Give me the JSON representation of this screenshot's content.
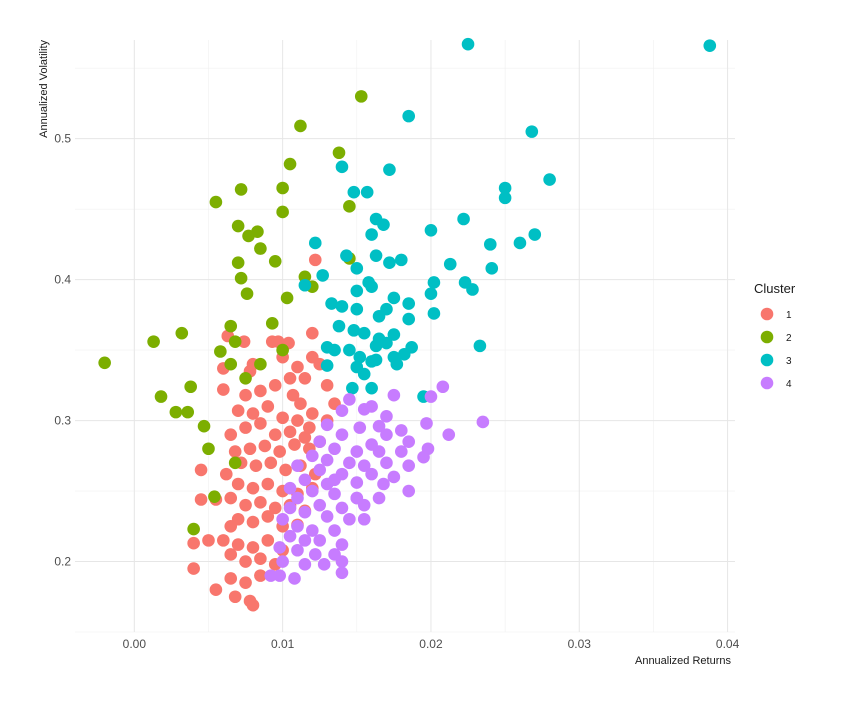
{
  "chart_data": {
    "type": "scatter",
    "xlabel": "Annualized Returns",
    "ylabel": "Annualized Volatility",
    "x_ticks": [
      "0.00",
      "0.01",
      "0.02",
      "0.03",
      "0.04"
    ],
    "y_ticks": [
      "0.2",
      "0.3",
      "0.4",
      "0.5"
    ],
    "xlim": [
      -0.004,
      0.0405
    ],
    "ylim": [
      0.15,
      0.57
    ],
    "grid": true,
    "legend": {
      "title": "Cluster",
      "position": "right"
    },
    "series": [
      {
        "name": "1",
        "color": "#F8766D",
        "points": [
          [
            0.0122,
            0.414
          ],
          [
            0.0093,
            0.356
          ],
          [
            0.0063,
            0.36
          ],
          [
            0.0074,
            0.356
          ],
          [
            0.0097,
            0.356
          ],
          [
            0.0104,
            0.355
          ],
          [
            0.012,
            0.362
          ],
          [
            0.01,
            0.345
          ],
          [
            0.006,
            0.337
          ],
          [
            0.008,
            0.34
          ],
          [
            0.0078,
            0.335
          ],
          [
            0.012,
            0.345
          ],
          [
            0.011,
            0.338
          ],
          [
            0.0105,
            0.33
          ],
          [
            0.0095,
            0.325
          ],
          [
            0.0085,
            0.321
          ],
          [
            0.0075,
            0.318
          ],
          [
            0.0115,
            0.33
          ],
          [
            0.0125,
            0.34
          ],
          [
            0.013,
            0.325
          ],
          [
            0.006,
            0.322
          ],
          [
            0.007,
            0.307
          ],
          [
            0.008,
            0.305
          ],
          [
            0.009,
            0.31
          ],
          [
            0.01,
            0.302
          ],
          [
            0.011,
            0.3
          ],
          [
            0.012,
            0.305
          ],
          [
            0.013,
            0.3
          ],
          [
            0.0065,
            0.29
          ],
          [
            0.0075,
            0.295
          ],
          [
            0.0085,
            0.298
          ],
          [
            0.0095,
            0.29
          ],
          [
            0.0105,
            0.292
          ],
          [
            0.0115,
            0.288
          ],
          [
            0.0125,
            0.285
          ],
          [
            0.0068,
            0.278
          ],
          [
            0.0078,
            0.28
          ],
          [
            0.0088,
            0.282
          ],
          [
            0.0098,
            0.278
          ],
          [
            0.0108,
            0.283
          ],
          [
            0.0118,
            0.28
          ],
          [
            0.0072,
            0.27
          ],
          [
            0.0082,
            0.268
          ],
          [
            0.0092,
            0.27
          ],
          [
            0.0102,
            0.265
          ],
          [
            0.0112,
            0.268
          ],
          [
            0.0122,
            0.262
          ],
          [
            0.0062,
            0.262
          ],
          [
            0.007,
            0.255
          ],
          [
            0.008,
            0.252
          ],
          [
            0.009,
            0.255
          ],
          [
            0.01,
            0.25
          ],
          [
            0.011,
            0.248
          ],
          [
            0.012,
            0.252
          ],
          [
            0.0065,
            0.245
          ],
          [
            0.0075,
            0.24
          ],
          [
            0.0085,
            0.242
          ],
          [
            0.0095,
            0.238
          ],
          [
            0.0105,
            0.24
          ],
          [
            0.0115,
            0.236
          ],
          [
            0.0045,
            0.244
          ],
          [
            0.0055,
            0.244
          ],
          [
            0.0045,
            0.265
          ],
          [
            0.007,
            0.23
          ],
          [
            0.008,
            0.228
          ],
          [
            0.009,
            0.232
          ],
          [
            0.01,
            0.225
          ],
          [
            0.0065,
            0.225
          ],
          [
            0.011,
            0.226
          ],
          [
            0.006,
            0.215
          ],
          [
            0.007,
            0.212
          ],
          [
            0.008,
            0.21
          ],
          [
            0.009,
            0.215
          ],
          [
            0.01,
            0.208
          ],
          [
            0.005,
            0.215
          ],
          [
            0.004,
            0.213
          ],
          [
            0.0065,
            0.205
          ],
          [
            0.0075,
            0.2
          ],
          [
            0.0085,
            0.202
          ],
          [
            0.0095,
            0.198
          ],
          [
            0.004,
            0.195
          ],
          [
            0.0065,
            0.188
          ],
          [
            0.0075,
            0.185
          ],
          [
            0.0085,
            0.19
          ],
          [
            0.0055,
            0.18
          ],
          [
            0.0068,
            0.175
          ],
          [
            0.0078,
            0.172
          ],
          [
            0.008,
            0.169
          ],
          [
            0.0107,
            0.318
          ],
          [
            0.0112,
            0.312
          ],
          [
            0.0135,
            0.312
          ],
          [
            0.0118,
            0.295
          ]
        ]
      },
      {
        "name": "2",
        "color": "#7CAE00",
        "points": [
          [
            0.0153,
            0.53
          ],
          [
            0.0112,
            0.509
          ],
          [
            0.0138,
            0.49
          ],
          [
            0.0105,
            0.482
          ],
          [
            0.01,
            0.465
          ],
          [
            0.0072,
            0.464
          ],
          [
            0.0055,
            0.455
          ],
          [
            0.0145,
            0.452
          ],
          [
            0.01,
            0.448
          ],
          [
            0.007,
            0.438
          ],
          [
            0.0083,
            0.434
          ],
          [
            0.0077,
            0.431
          ],
          [
            0.0085,
            0.422
          ],
          [
            0.0095,
            0.413
          ],
          [
            0.007,
            0.412
          ],
          [
            0.0145,
            0.415
          ],
          [
            0.0072,
            0.401
          ],
          [
            0.0115,
            0.402
          ],
          [
            0.012,
            0.395
          ],
          [
            0.0103,
            0.387
          ],
          [
            0.0076,
            0.39
          ],
          [
            0.0065,
            0.367
          ],
          [
            0.0093,
            0.369
          ],
          [
            0.0032,
            0.362
          ],
          [
            0.0013,
            0.356
          ],
          [
            0.0068,
            0.356
          ],
          [
            0.0058,
            0.349
          ],
          [
            0.0065,
            0.34
          ],
          [
            0.0085,
            0.34
          ],
          [
            0.01,
            0.35
          ],
          [
            0.0038,
            0.324
          ],
          [
            0.0075,
            0.33
          ],
          [
            -0.002,
            0.341
          ],
          [
            0.0018,
            0.317
          ],
          [
            0.0028,
            0.306
          ],
          [
            0.0036,
            0.306
          ],
          [
            0.0047,
            0.296
          ],
          [
            0.005,
            0.28
          ],
          [
            0.0068,
            0.27
          ],
          [
            0.0054,
            0.246
          ],
          [
            0.004,
            0.223
          ]
        ]
      },
      {
        "name": "3",
        "color": "#00BFC4",
        "points": [
          [
            0.0225,
            0.567
          ],
          [
            0.0388,
            0.566
          ],
          [
            0.0185,
            0.516
          ],
          [
            0.0268,
            0.505
          ],
          [
            0.014,
            0.48
          ],
          [
            0.0172,
            0.478
          ],
          [
            0.028,
            0.471
          ],
          [
            0.025,
            0.465
          ],
          [
            0.0148,
            0.462
          ],
          [
            0.0157,
            0.462
          ],
          [
            0.025,
            0.458
          ],
          [
            0.0222,
            0.443
          ],
          [
            0.0163,
            0.443
          ],
          [
            0.0168,
            0.439
          ],
          [
            0.016,
            0.432
          ],
          [
            0.026,
            0.426
          ],
          [
            0.0122,
            0.426
          ],
          [
            0.024,
            0.425
          ],
          [
            0.027,
            0.432
          ],
          [
            0.02,
            0.435
          ],
          [
            0.0143,
            0.417
          ],
          [
            0.0163,
            0.417
          ],
          [
            0.0172,
            0.412
          ],
          [
            0.018,
            0.414
          ],
          [
            0.0213,
            0.411
          ],
          [
            0.0241,
            0.408
          ],
          [
            0.015,
            0.408
          ],
          [
            0.0127,
            0.403
          ],
          [
            0.0158,
            0.398
          ],
          [
            0.0202,
            0.398
          ],
          [
            0.0223,
            0.398
          ],
          [
            0.0115,
            0.396
          ],
          [
            0.015,
            0.392
          ],
          [
            0.02,
            0.39
          ],
          [
            0.0228,
            0.393
          ],
          [
            0.016,
            0.395
          ],
          [
            0.0175,
            0.387
          ],
          [
            0.0133,
            0.383
          ],
          [
            0.0185,
            0.383
          ],
          [
            0.014,
            0.381
          ],
          [
            0.015,
            0.379
          ],
          [
            0.017,
            0.379
          ],
          [
            0.0165,
            0.374
          ],
          [
            0.0185,
            0.372
          ],
          [
            0.0202,
            0.376
          ],
          [
            0.0138,
            0.367
          ],
          [
            0.0148,
            0.364
          ],
          [
            0.0155,
            0.362
          ],
          [
            0.0165,
            0.358
          ],
          [
            0.0175,
            0.361
          ],
          [
            0.0163,
            0.353
          ],
          [
            0.017,
            0.355
          ],
          [
            0.0187,
            0.352
          ],
          [
            0.013,
            0.352
          ],
          [
            0.0135,
            0.35
          ],
          [
            0.0145,
            0.35
          ],
          [
            0.016,
            0.342
          ],
          [
            0.0175,
            0.345
          ],
          [
            0.0152,
            0.345
          ],
          [
            0.0233,
            0.353
          ],
          [
            0.0155,
            0.333
          ],
          [
            0.0163,
            0.343
          ],
          [
            0.013,
            0.339
          ],
          [
            0.015,
            0.338
          ],
          [
            0.0182,
            0.347
          ],
          [
            0.0177,
            0.34
          ],
          [
            0.0147,
            0.323
          ],
          [
            0.016,
            0.323
          ],
          [
            0.0195,
            0.317
          ]
        ]
      },
      {
        "name": "4",
        "color": "#C77CFF",
        "points": [
          [
            0.0208,
            0.324
          ],
          [
            0.02,
            0.317
          ],
          [
            0.0175,
            0.318
          ],
          [
            0.0145,
            0.315
          ],
          [
            0.0155,
            0.308
          ],
          [
            0.016,
            0.31
          ],
          [
            0.014,
            0.307
          ],
          [
            0.017,
            0.303
          ],
          [
            0.0235,
            0.299
          ],
          [
            0.0197,
            0.298
          ],
          [
            0.013,
            0.297
          ],
          [
            0.0152,
            0.295
          ],
          [
            0.0165,
            0.296
          ],
          [
            0.018,
            0.293
          ],
          [
            0.0212,
            0.29
          ],
          [
            0.014,
            0.29
          ],
          [
            0.017,
            0.29
          ],
          [
            0.0185,
            0.285
          ],
          [
            0.0198,
            0.28
          ],
          [
            0.016,
            0.283
          ],
          [
            0.0125,
            0.285
          ],
          [
            0.0135,
            0.28
          ],
          [
            0.015,
            0.278
          ],
          [
            0.0165,
            0.278
          ],
          [
            0.018,
            0.278
          ],
          [
            0.0195,
            0.274
          ],
          [
            0.012,
            0.275
          ],
          [
            0.013,
            0.272
          ],
          [
            0.0145,
            0.27
          ],
          [
            0.0155,
            0.268
          ],
          [
            0.017,
            0.27
          ],
          [
            0.0185,
            0.268
          ],
          [
            0.011,
            0.268
          ],
          [
            0.0125,
            0.265
          ],
          [
            0.014,
            0.262
          ],
          [
            0.016,
            0.262
          ],
          [
            0.0175,
            0.26
          ],
          [
            0.0115,
            0.258
          ],
          [
            0.013,
            0.255
          ],
          [
            0.015,
            0.256
          ],
          [
            0.0168,
            0.255
          ],
          [
            0.0185,
            0.25
          ],
          [
            0.0105,
            0.252
          ],
          [
            0.012,
            0.25
          ],
          [
            0.0135,
            0.248
          ],
          [
            0.015,
            0.245
          ],
          [
            0.0165,
            0.245
          ],
          [
            0.011,
            0.245
          ],
          [
            0.0125,
            0.24
          ],
          [
            0.014,
            0.238
          ],
          [
            0.0155,
            0.24
          ],
          [
            0.0105,
            0.238
          ],
          [
            0.0115,
            0.235
          ],
          [
            0.013,
            0.232
          ],
          [
            0.0145,
            0.23
          ],
          [
            0.0155,
            0.23
          ],
          [
            0.01,
            0.23
          ],
          [
            0.011,
            0.225
          ],
          [
            0.012,
            0.222
          ],
          [
            0.0135,
            0.222
          ],
          [
            0.0105,
            0.218
          ],
          [
            0.0115,
            0.215
          ],
          [
            0.0125,
            0.215
          ],
          [
            0.014,
            0.212
          ],
          [
            0.0098,
            0.21
          ],
          [
            0.011,
            0.208
          ],
          [
            0.0122,
            0.205
          ],
          [
            0.0135,
            0.205
          ],
          [
            0.01,
            0.2
          ],
          [
            0.0115,
            0.198
          ],
          [
            0.0128,
            0.198
          ],
          [
            0.014,
            0.2
          ],
          [
            0.0098,
            0.19
          ],
          [
            0.0108,
            0.188
          ],
          [
            0.0092,
            0.19
          ],
          [
            0.014,
            0.192
          ],
          [
            0.015,
            0.245
          ],
          [
            0.0135,
            0.258
          ]
        ]
      }
    ]
  }
}
